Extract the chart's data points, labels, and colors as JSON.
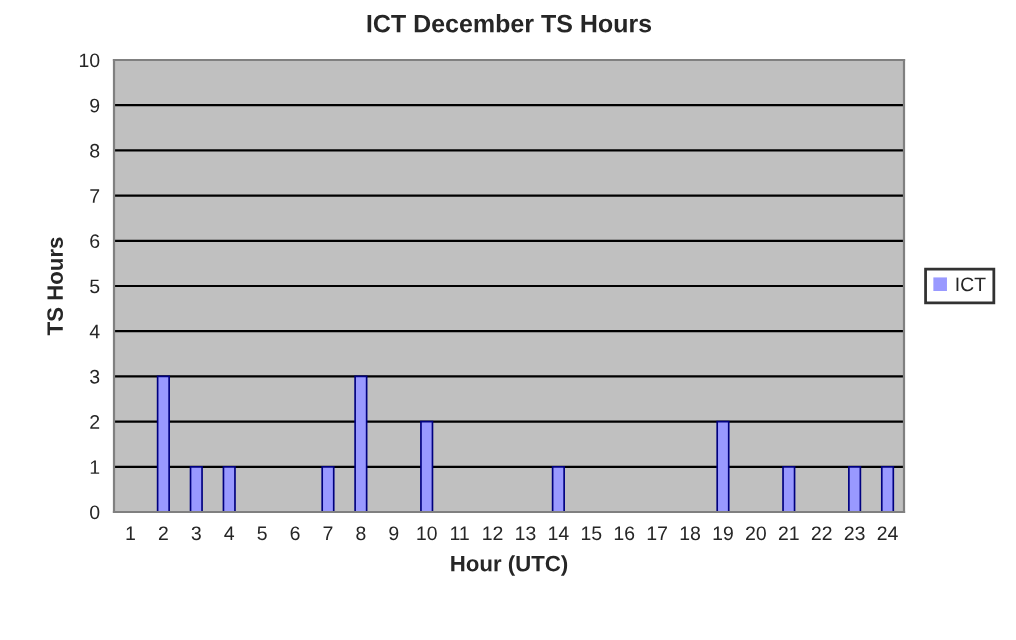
{
  "chart_data": {
    "type": "bar",
    "title": "ICT December TS Hours",
    "xlabel": "Hour (UTC)",
    "ylabel": "TS Hours",
    "categories": [
      "1",
      "2",
      "3",
      "4",
      "5",
      "6",
      "7",
      "8",
      "9",
      "10",
      "11",
      "12",
      "13",
      "14",
      "15",
      "16",
      "17",
      "18",
      "19",
      "20",
      "21",
      "22",
      "23",
      "24"
    ],
    "series": [
      {
        "name": "ICT",
        "color": "#9999ff",
        "values": [
          0,
          3,
          1,
          1,
          0,
          0,
          1,
          3,
          0,
          2,
          0,
          0,
          0,
          1,
          0,
          0,
          0,
          0,
          2,
          0,
          1,
          0,
          1,
          1
        ]
      }
    ],
    "ylim": [
      0,
      10
    ],
    "yticks": [
      0,
      1,
      2,
      3,
      4,
      5,
      6,
      7,
      8,
      9,
      10
    ],
    "grid": "y",
    "legend": "right"
  }
}
